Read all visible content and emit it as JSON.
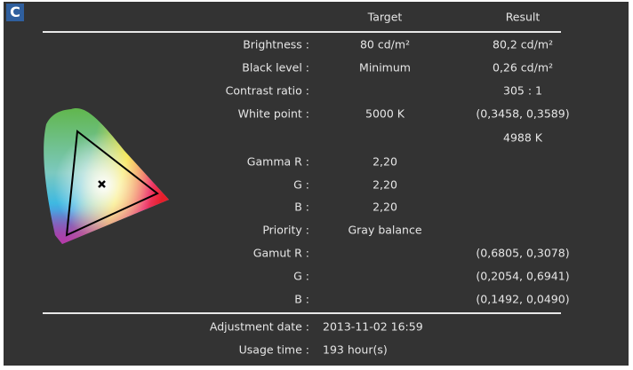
{
  "badge": "C",
  "header": {
    "target": "Target",
    "result": "Result"
  },
  "rows": [
    {
      "label": "Brightness :",
      "target": "80 cd/m²",
      "result": "80,2 cd/m²"
    },
    {
      "label": "Black level :",
      "target": "Minimum",
      "result": "0,26 cd/m²"
    },
    {
      "label": "Contrast ratio :",
      "target": "",
      "result": "305 : 1"
    },
    {
      "label": "White point :",
      "target": "5000 K",
      "result": "(0,3458, 0,3589)"
    },
    {
      "label": "",
      "target": "",
      "result": "4988 K"
    },
    {
      "label": "Gamma R :",
      "target": "2,20",
      "result": ""
    },
    {
      "label": "G :",
      "target": "2,20",
      "result": ""
    },
    {
      "label": "B :",
      "target": "2,20",
      "result": ""
    },
    {
      "label": "Priority :",
      "target": "Gray balance",
      "result": ""
    },
    {
      "label": "Gamut R :",
      "target": "",
      "result": "(0,6805, 0,3078)"
    },
    {
      "label": "G :",
      "target": "",
      "result": "(0,2054, 0,6941)"
    },
    {
      "label": "B :",
      "target": "",
      "result": "(0,1492, 0,0490)"
    }
  ],
  "footer": [
    {
      "label": "Adjustment date :",
      "value": "2013-11-02 16:59"
    },
    {
      "label": "Usage time :",
      "value": "193 hour(s)"
    }
  ],
  "colors": {
    "panel": "#333333",
    "badge": "#2f5f9e",
    "text": "#e6e6e6"
  },
  "icons": {
    "chart": "cie-chromaticity-diagram",
    "white_point": "x-marker"
  }
}
